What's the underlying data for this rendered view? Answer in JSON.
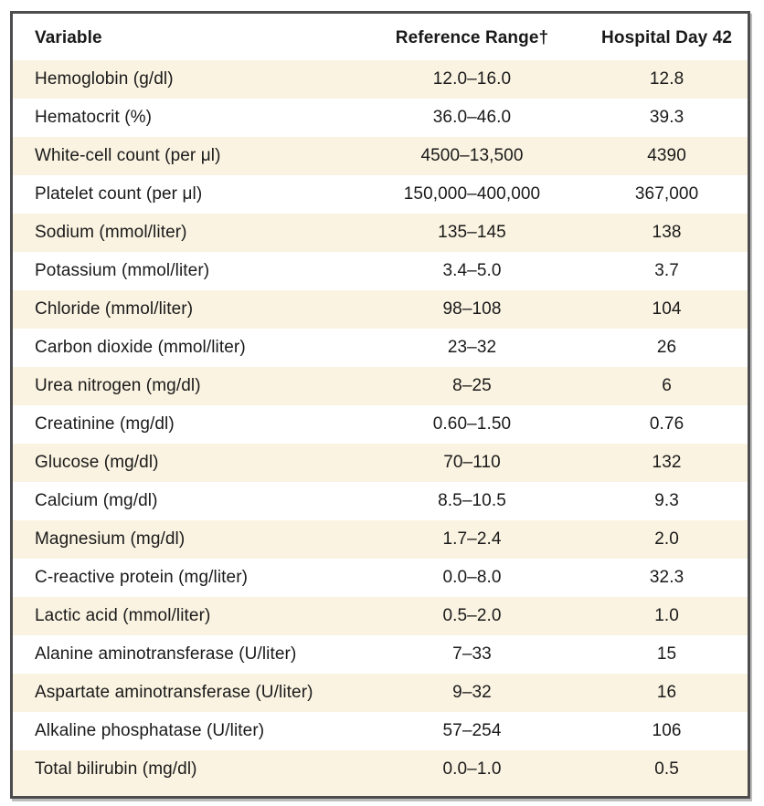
{
  "table": {
    "columns": [
      "Variable",
      "Reference Range†",
      "Hospital Day 42"
    ],
    "rows": [
      [
        "Hemoglobin (g/dl)",
        "12.0–16.0",
        "12.8"
      ],
      [
        "Hematocrit (%)",
        "36.0–46.0",
        "39.3"
      ],
      [
        "White-cell count (per μl)",
        "4500–13,500",
        "4390"
      ],
      [
        "Platelet count (per μl)",
        "150,000–400,000",
        "367,000"
      ],
      [
        "Sodium (mmol/liter)",
        "135–145",
        "138"
      ],
      [
        "Potassium (mmol/liter)",
        "3.4–5.0",
        "3.7"
      ],
      [
        "Chloride (mmol/liter)",
        "98–108",
        "104"
      ],
      [
        "Carbon dioxide (mmol/liter)",
        "23–32",
        "26"
      ],
      [
        "Urea nitrogen (mg/dl)",
        "8–25",
        "6"
      ],
      [
        "Creatinine (mg/dl)",
        "0.60–1.50",
        "0.76"
      ],
      [
        "Glucose (mg/dl)",
        "70–110",
        "132"
      ],
      [
        "Calcium (mg/dl)",
        "8.5–10.5",
        "9.3"
      ],
      [
        "Magnesium (mg/dl)",
        "1.7–2.4",
        "2.0"
      ],
      [
        "C-reactive protein (mg/liter)",
        "0.0–8.0",
        "32.3"
      ],
      [
        "Lactic acid (mmol/liter)",
        "0.5–2.0",
        "1.0"
      ],
      [
        "Alanine aminotransferase (U/liter)",
        "7–33",
        "15"
      ],
      [
        "Aspartate aminotransferase (U/liter)",
        "9–32",
        "16"
      ],
      [
        "Alkaline phosphatase (U/liter)",
        "57–254",
        "106"
      ],
      [
        "Total bilirubin (mg/dl)",
        "0.0–1.0",
        "0.5"
      ]
    ]
  },
  "colors": {
    "row_stripe": "#faf3e1",
    "row_alt": "#ffffff",
    "frame_border": "#4c4c4e",
    "frame_shadow": "#bdbdbd",
    "text": "#1a1a1a"
  }
}
